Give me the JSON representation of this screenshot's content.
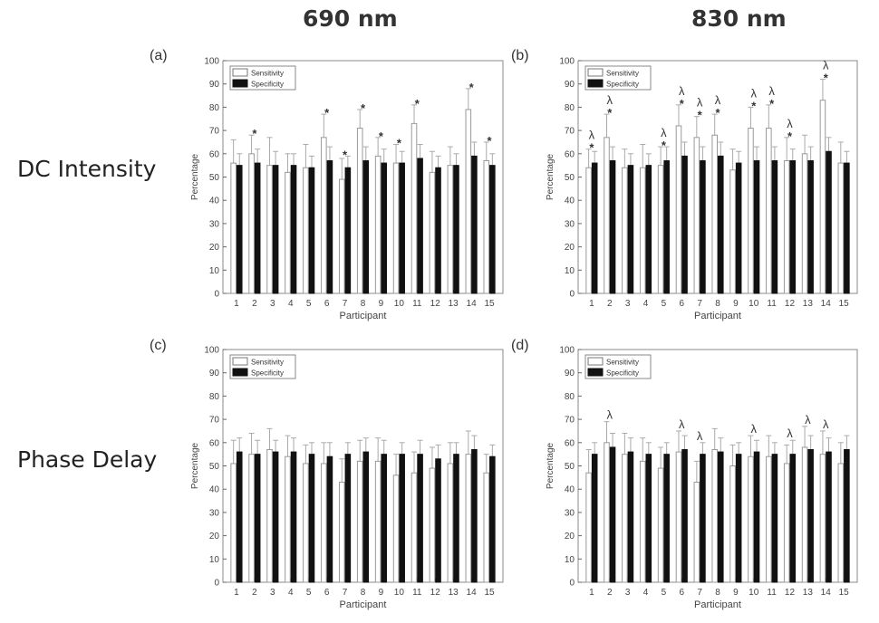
{
  "figure": {
    "col_titles": [
      "690 nm",
      "830 nm"
    ],
    "row_titles": [
      "DC Intensity",
      "Phase Delay"
    ]
  },
  "chart_data": [
    {
      "type": "bar",
      "panel_label": "(a)",
      "xlabel": "Participant",
      "ylabel": "Percentage",
      "ylim": [
        0,
        100
      ],
      "yticks": [
        0,
        10,
        20,
        30,
        40,
        50,
        60,
        70,
        80,
        90,
        100
      ],
      "categories": [
        "1",
        "2",
        "3",
        "4",
        "5",
        "6",
        "7",
        "8",
        "9",
        "10",
        "11",
        "12",
        "13",
        "14",
        "15"
      ],
      "legend": {
        "position": "top-left"
      },
      "series": [
        {
          "name": "Sensitivity",
          "color": "#ffffff",
          "values": [
            56,
            60,
            55,
            52,
            54,
            67,
            49,
            71,
            59,
            56,
            73,
            52,
            55,
            79,
            57
          ],
          "error": [
            10,
            8,
            12,
            8,
            10,
            10,
            9,
            8,
            8,
            8,
            8,
            9,
            8,
            9,
            8
          ]
        },
        {
          "name": "Specificity",
          "color": "#111111",
          "values": [
            55,
            56,
            55,
            55,
            54,
            57,
            54,
            57,
            56,
            56,
            58,
            54,
            55,
            59,
            55
          ],
          "error": [
            5,
            6,
            6,
            5,
            5,
            6,
            5,
            6,
            6,
            5,
            6,
            5,
            5,
            6,
            5
          ]
        }
      ],
      "annotations": [
        {
          "participant": "2",
          "marks": "*"
        },
        {
          "participant": "6",
          "marks": "*"
        },
        {
          "participant": "7",
          "marks": "*"
        },
        {
          "participant": "8",
          "marks": "*"
        },
        {
          "participant": "9",
          "marks": "*"
        },
        {
          "participant": "10",
          "marks": "*"
        },
        {
          "participant": "11",
          "marks": "*"
        },
        {
          "participant": "14",
          "marks": "*"
        },
        {
          "participant": "15",
          "marks": "*"
        }
      ]
    },
    {
      "type": "bar",
      "panel_label": "(b)",
      "xlabel": "Participant",
      "ylabel": "Percentage",
      "ylim": [
        0,
        100
      ],
      "yticks": [
        0,
        10,
        20,
        30,
        40,
        50,
        60,
        70,
        80,
        90,
        100
      ],
      "categories": [
        "1",
        "2",
        "3",
        "4",
        "5",
        "6",
        "7",
        "8",
        "9",
        "10",
        "11",
        "12",
        "13",
        "14",
        "15"
      ],
      "legend": {
        "position": "top-left"
      },
      "series": [
        {
          "name": "Sensitivity",
          "color": "#ffffff",
          "values": [
            54,
            67,
            54,
            54,
            55,
            72,
            67,
            68,
            53,
            71,
            71,
            57,
            60,
            83,
            56
          ],
          "error": [
            8,
            10,
            8,
            10,
            8,
            9,
            9,
            9,
            9,
            9,
            10,
            10,
            8,
            9,
            9
          ]
        },
        {
          "name": "Specificity",
          "color": "#111111",
          "values": [
            56,
            57,
            55,
            55,
            57,
            59,
            57,
            59,
            56,
            57,
            57,
            57,
            57,
            61,
            56
          ],
          "error": [
            5,
            6,
            5,
            5,
            6,
            6,
            6,
            6,
            5,
            6,
            6,
            5,
            6,
            6,
            5
          ]
        }
      ],
      "annotations": [
        {
          "participant": "1",
          "marks": "λ*"
        },
        {
          "participant": "2",
          "marks": "λ*"
        },
        {
          "participant": "5",
          "marks": "λ*"
        },
        {
          "participant": "6",
          "marks": "λ*"
        },
        {
          "participant": "7",
          "marks": "λ*"
        },
        {
          "participant": "8",
          "marks": "λ*"
        },
        {
          "participant": "10",
          "marks": "λ*"
        },
        {
          "participant": "11",
          "marks": "λ*"
        },
        {
          "participant": "12",
          "marks": "λ*"
        },
        {
          "participant": "14",
          "marks": "λ*"
        }
      ]
    },
    {
      "type": "bar",
      "panel_label": "(c)",
      "xlabel": "Participant",
      "ylabel": "Percentage",
      "ylim": [
        0,
        100
      ],
      "yticks": [
        0,
        10,
        20,
        30,
        40,
        50,
        60,
        70,
        80,
        90,
        100
      ],
      "categories": [
        "1",
        "2",
        "3",
        "4",
        "5",
        "6",
        "7",
        "8",
        "9",
        "10",
        "11",
        "12",
        "13",
        "14",
        "15"
      ],
      "legend": {
        "position": "top-left"
      },
      "series": [
        {
          "name": "Sensitivity",
          "color": "#ffffff",
          "values": [
            51,
            55,
            57,
            54,
            51,
            51,
            43,
            52,
            52,
            46,
            47,
            49,
            51,
            55,
            47
          ],
          "error": [
            10,
            9,
            9,
            9,
            8,
            9,
            10,
            9,
            10,
            9,
            9,
            9,
            9,
            10,
            8
          ]
        },
        {
          "name": "Specificity",
          "color": "#111111",
          "values": [
            56,
            55,
            56,
            56,
            55,
            54,
            55,
            56,
            55,
            55,
            55,
            53,
            55,
            57,
            54
          ],
          "error": [
            6,
            6,
            5,
            6,
            5,
            6,
            5,
            6,
            6,
            5,
            6,
            6,
            5,
            6,
            5
          ]
        }
      ],
      "annotations": []
    },
    {
      "type": "bar",
      "panel_label": "(d)",
      "xlabel": "Participant",
      "ylabel": "Percentage",
      "ylim": [
        0,
        100
      ],
      "yticks": [
        0,
        10,
        20,
        30,
        40,
        50,
        60,
        70,
        80,
        90,
        100
      ],
      "categories": [
        "1",
        "2",
        "3",
        "4",
        "5",
        "6",
        "7",
        "8",
        "9",
        "10",
        "11",
        "12",
        "13",
        "14",
        "15"
      ],
      "legend": {
        "position": "top-left"
      },
      "series": [
        {
          "name": "Sensitivity",
          "color": "#ffffff",
          "values": [
            47,
            60,
            55,
            52,
            49,
            56,
            43,
            57,
            50,
            54,
            54,
            51,
            58,
            55,
            51
          ],
          "error": [
            10,
            9,
            9,
            10,
            9,
            9,
            9,
            9,
            9,
            9,
            9,
            8,
            9,
            10,
            9
          ]
        },
        {
          "name": "Specificity",
          "color": "#111111",
          "values": [
            55,
            58,
            56,
            55,
            55,
            57,
            55,
            56,
            55,
            56,
            55,
            55,
            57,
            56,
            57
          ],
          "error": [
            5,
            6,
            6,
            5,
            5,
            6,
            5,
            6,
            5,
            5,
            5,
            6,
            6,
            6,
            6
          ]
        }
      ],
      "annotations": [
        {
          "participant": "2",
          "marks": "λ"
        },
        {
          "participant": "6",
          "marks": "λ"
        },
        {
          "participant": "7",
          "marks": "λ"
        },
        {
          "participant": "10",
          "marks": "λ"
        },
        {
          "participant": "12",
          "marks": "λ"
        },
        {
          "participant": "13",
          "marks": "λ"
        },
        {
          "participant": "14",
          "marks": "λ"
        }
      ]
    }
  ]
}
